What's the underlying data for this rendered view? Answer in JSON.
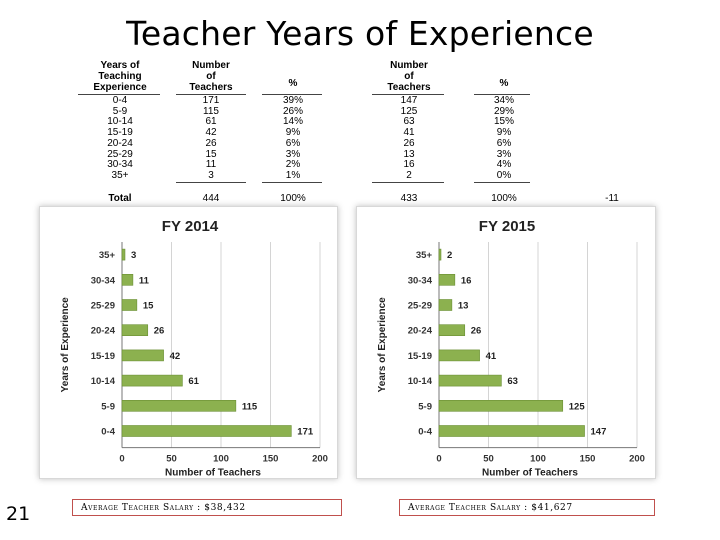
{
  "title": "Teacher Years of Experience",
  "page_number": "21",
  "table": {
    "headers": {
      "experience": [
        "Years of",
        "Teaching",
        "Experience"
      ],
      "num2014": [
        "Number",
        "of",
        "Teachers"
      ],
      "pct2014": [
        "%"
      ],
      "num2015": [
        "Number",
        "of",
        "Teachers"
      ],
      "pct2015": [
        "%"
      ]
    },
    "rows": [
      {
        "exp": "0-4",
        "n14": "171",
        "p14": "39%",
        "n15": "147",
        "p15": "34%"
      },
      {
        "exp": "5-9",
        "n14": "115",
        "p14": "26%",
        "n15": "125",
        "p15": "29%"
      },
      {
        "exp": "10-14",
        "n14": "61",
        "p14": "14%",
        "n15": "63",
        "p15": "15%"
      },
      {
        "exp": "15-19",
        "n14": "42",
        "p14": "9%",
        "n15": "41",
        "p15": "9%"
      },
      {
        "exp": "20-24",
        "n14": "26",
        "p14": "6%",
        "n15": "26",
        "p15": "6%"
      },
      {
        "exp": "25-29",
        "n14": "15",
        "p14": "3%",
        "n15": "13",
        "p15": "3%"
      },
      {
        "exp": "30-34",
        "n14": "11",
        "p14": "2%",
        "n15": "16",
        "p15": "4%"
      },
      {
        "exp": "35+",
        "n14": "3",
        "p14": "1%",
        "n15": "2",
        "p15": "0%"
      }
    ],
    "total": {
      "label": "Total",
      "n14": "444",
      "p14": "100%",
      "n15": "433",
      "p15": "100%",
      "diff": "-11"
    }
  },
  "chart_data": [
    {
      "type": "bar",
      "orientation": "horizontal",
      "title": "FY 2014",
      "xlabel": "Number of Teachers",
      "ylabel": "Years of Experience",
      "categories": [
        "35+",
        "30-34",
        "25-29",
        "20-24",
        "15-19",
        "10-14",
        "5-9",
        "0-4"
      ],
      "values": [
        3,
        11,
        15,
        26,
        42,
        61,
        115,
        171
      ],
      "xlim": [
        0,
        200
      ],
      "xticks": [
        "0",
        "50",
        "100",
        "150",
        "200"
      ],
      "color": "#8cb14f"
    },
    {
      "type": "bar",
      "orientation": "horizontal",
      "title": "FY 2015",
      "xlabel": "Number of Teachers",
      "ylabel": "Years of Experience",
      "categories": [
        "35+",
        "30-34",
        "25-29",
        "20-24",
        "15-19",
        "10-14",
        "5-9",
        "0-4"
      ],
      "values": [
        2,
        16,
        13,
        26,
        41,
        63,
        125,
        147
      ],
      "xlim": [
        0,
        200
      ],
      "xticks": [
        "0",
        "50",
        "100",
        "150",
        "200"
      ],
      "color": "#8cb14f"
    }
  ],
  "salary": {
    "fy2014": "Average Teacher Salary : $38,432",
    "fy2015": "Average Teacher Salary : $41,627"
  },
  "colors": {
    "bar": "#8cb14f",
    "bar_edge": "#6a8f34",
    "salary_border": "#c0504d"
  }
}
